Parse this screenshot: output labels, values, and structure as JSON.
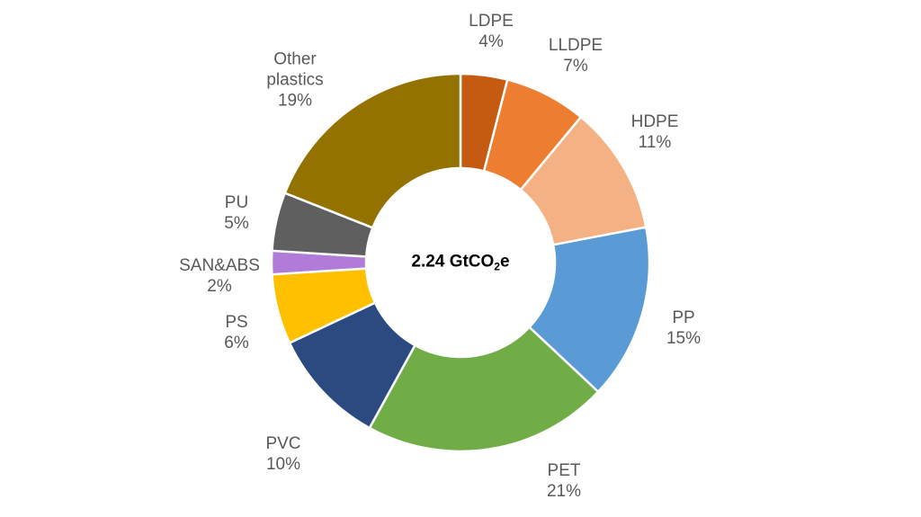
{
  "chart_data": {
    "type": "pie",
    "variant": "donut",
    "title": "",
    "center_label": {
      "value": "2.24 GtCO",
      "subscript": "2",
      "suffix": "e"
    },
    "start_angle_deg": 0,
    "direction": "clockwise",
    "unit": "%",
    "categories": [
      "LDPE",
      "LLDPE",
      "HDPE",
      "PP",
      "PET",
      "PVC",
      "PS",
      "SAN&ABS",
      "PU",
      "Other plastics"
    ],
    "values": [
      4,
      7,
      11,
      15,
      21,
      10,
      6,
      2,
      5,
      19
    ],
    "colors": [
      "#C55A11",
      "#ED7D31",
      "#F4B183",
      "#5B9BD5",
      "#70AD47",
      "#2A4A80",
      "#FFC000",
      "#B07CD8",
      "#5F5F5F",
      "#947200"
    ],
    "labels": [
      {
        "name": "LDPE",
        "pct": "4%"
      },
      {
        "name": "LLDPE",
        "pct": "7%"
      },
      {
        "name": "HDPE",
        "pct": "11%"
      },
      {
        "name": "PP",
        "pct": "15%"
      },
      {
        "name": "PET",
        "pct": "21%"
      },
      {
        "name": "PVC",
        "pct": "10%"
      },
      {
        "name": "PS",
        "pct": "6%"
      },
      {
        "name": "SAN&ABS",
        "pct": "2%"
      },
      {
        "name": "PU",
        "pct": "5%"
      },
      {
        "name": "Other\nplastics",
        "pct": "19%"
      }
    ]
  }
}
